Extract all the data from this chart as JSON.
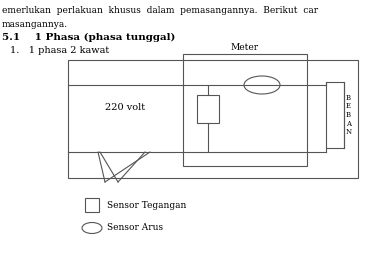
{
  "top_text1": "emerlukan  perlakuan  khusus  dalam  pemasangannya.  Berikut  car",
  "top_text2": "masangannya.",
  "heading": "5.1    1 Phasa (phasa tunggal)",
  "subheading": "1.   1 phasa 2 kawat",
  "label_220": "220 volt",
  "label_meter": "Meter",
  "label_beban": "B\nE\nB\nA\nN",
  "legend_sq": "Sensor Tegangan",
  "legend_el": "Sensor Arus",
  "bg_color": "#ffffff",
  "line_color": "#555555",
  "text_color": "#000000"
}
